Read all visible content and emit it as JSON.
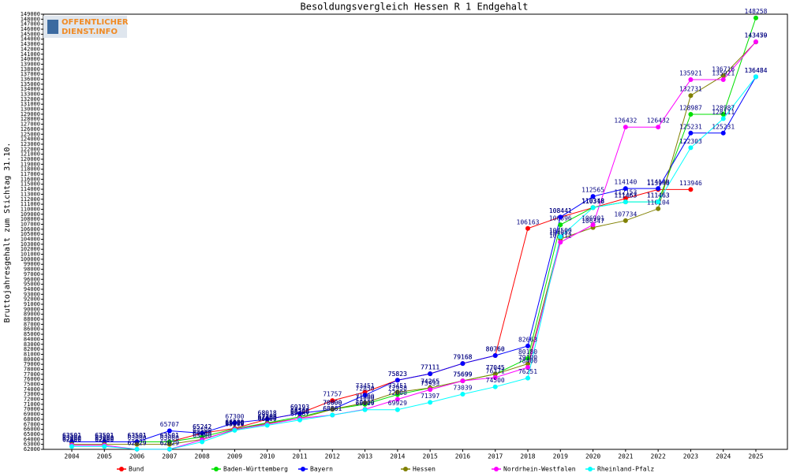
{
  "logo": [
    "OFFENTLICHER",
    "DIENST.INFO"
  ],
  "chart_data": {
    "type": "line",
    "title": "Besoldungsvergleich Hessen R 1 Endgehalt",
    "y_label": "Bruttojahresgehalt zum Stichtag 31.10.",
    "categories": [
      "2004",
      "2005",
      "2006",
      "2007",
      "2008",
      "2009",
      "2010",
      "2011",
      "2012",
      "2013",
      "2014",
      "2015",
      "2016",
      "2017",
      "2018",
      "2019",
      "2020",
      "2021",
      "2022",
      "2023",
      "2024",
      "2025"
    ],
    "ylim": [
      62000,
      149000
    ],
    "yticks": [
      62000,
      63000,
      64000,
      65000,
      66000,
      67000,
      68000,
      69000,
      70000,
      71000,
      72000,
      73000,
      74000,
      75000,
      76000,
      77000,
      78000,
      79000,
      80000,
      81000,
      82000,
      83000,
      84000,
      85000,
      86000,
      87000,
      88000,
      89000,
      90000,
      91000,
      92000,
      93000,
      94000,
      95000,
      96000,
      97000,
      98000,
      99000,
      100000,
      101000,
      102000,
      103000,
      104000,
      105000,
      106000,
      107000,
      108000,
      109000,
      110000,
      111000,
      112000,
      113000,
      114000,
      115000,
      116000,
      117000,
      118000,
      119000,
      120000,
      121000,
      122000,
      123000,
      124000,
      125000,
      126000,
      127000,
      128000,
      129000,
      130000,
      131000,
      132000,
      133000,
      134000,
      135000,
      136000,
      137000,
      138000,
      139000,
      140000,
      141000,
      142000,
      143000,
      144000,
      145000,
      146000,
      147000,
      148000,
      149000
    ],
    "series": [
      {
        "name": "Bund",
        "color": "#ff0000",
        "values": [
          63501,
          63501,
          63501,
          63501,
          65242,
          66200,
          68018,
          69193,
          71757,
          73451,
          75823,
          77111,
          79168,
          80760,
          106163,
          108441,
          110318,
          112153,
          113946,
          113946,
          null,
          null
        ]
      },
      {
        "name": "Baden-Württemberg",
        "color": "#00e000",
        "values": [
          63501,
          63501,
          63501,
          63501,
          64500,
          66100,
          67300,
          68500,
          70000,
          71000,
          72958,
          74265,
          75699,
          77045,
          80180,
          106896,
          110348,
          111463,
          111463,
          128987,
          128987,
          148258
        ]
      },
      {
        "name": "Bayern",
        "color": "#0000ff",
        "values": [
          63501,
          63501,
          63501,
          65707,
          65242,
          67300,
          68018,
          69193,
          70000,
          72850,
          75823,
          77111,
          79168,
          80760,
          82663,
          108441,
          112565,
          114140,
          114140,
          125231,
          125231,
          136484
        ]
      },
      {
        "name": "Hessen",
        "color": "#808000",
        "values": [
          63000,
          63000,
          63000,
          63000,
          64000,
          65900,
          67200,
          68200,
          70000,
          71300,
          73451,
          74265,
          75699,
          77045,
          79100,
          104052,
          106347,
          107734,
          110104,
          132731,
          136716,
          143450
        ]
      },
      {
        "name": "Nordrhein-Westfalen",
        "color": "#ff00ff",
        "values": [
          62800,
          62800,
          62029,
          62029,
          63900,
          66000,
          67000,
          68200,
          68861,
          70000,
          72000,
          73933,
          75699,
          76371,
          78400,
          103412,
          106901,
          126432,
          126432,
          135921,
          135921,
          143479
        ]
      },
      {
        "name": "Rheinland-Pfalz",
        "color": "#00ffff",
        "values": [
          62600,
          62600,
          62029,
          62029,
          63500,
          65800,
          66800,
          67867,
          68861,
          69929,
          69929,
          71397,
          73039,
          74500,
          76251,
          104500,
          110318,
          111463,
          111463,
          122303,
          128111,
          136484
        ]
      }
    ]
  }
}
